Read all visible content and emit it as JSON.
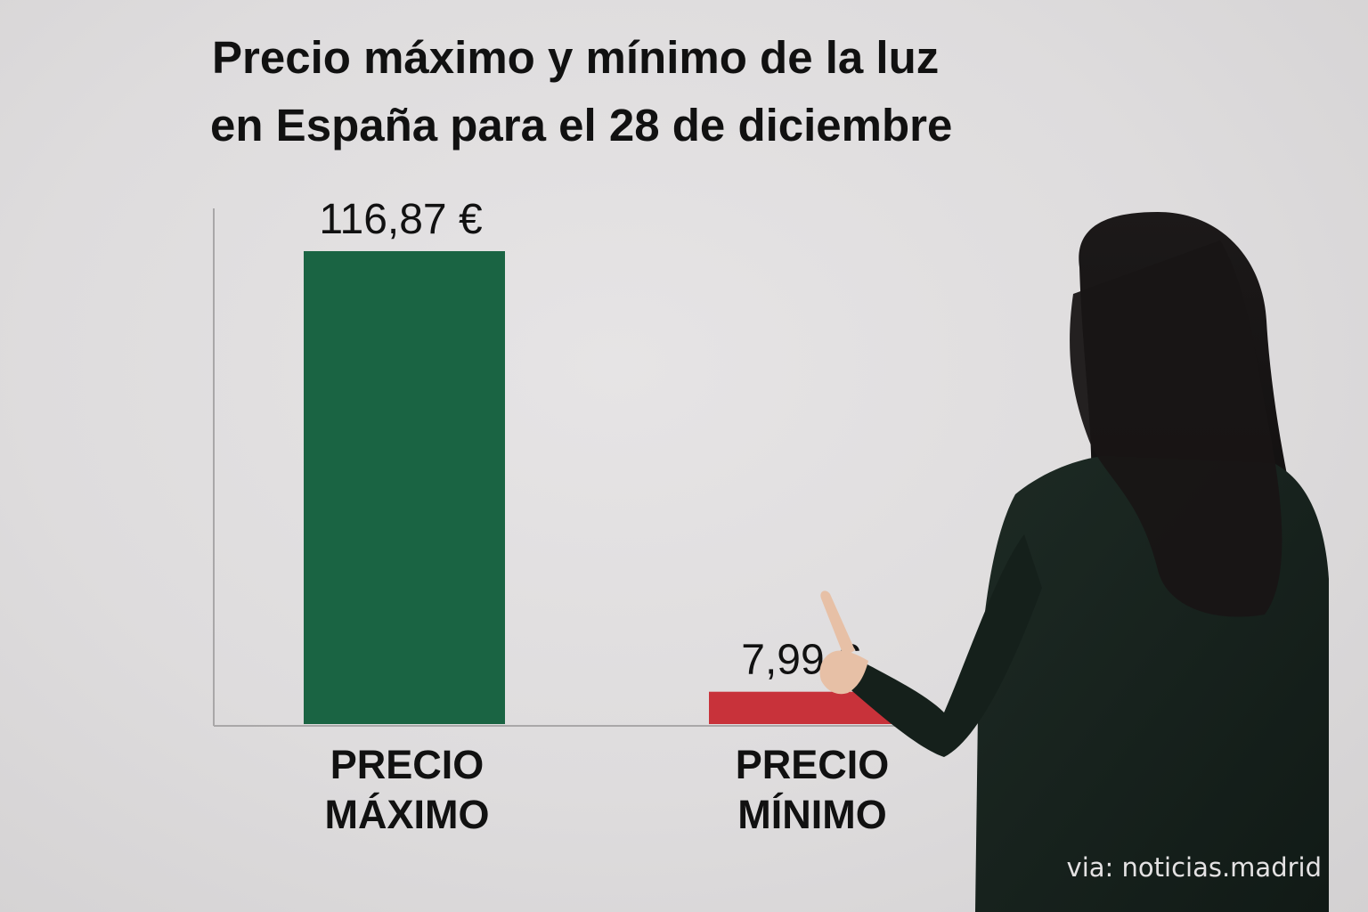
{
  "chart_data": {
    "type": "bar",
    "title_lines": [
      "Precio máximo y mínimo de la luz",
      "en España para el 28 de diciembre"
    ],
    "categories": [
      [
        "PRECIO",
        "MÁXIMO"
      ],
      [
        "PRECIO",
        "MÍNIMO"
      ]
    ],
    "values": [
      116.87,
      7.99
    ],
    "value_labels": [
      "116,87 €",
      "7,99 €"
    ],
    "colors": [
      "#1a6443",
      "#c8323a"
    ],
    "ylim": [
      0,
      116.87
    ],
    "grid": false,
    "legend": "none",
    "xlabel": "",
    "ylabel": ""
  },
  "watermark": "via: noticias.madrid"
}
